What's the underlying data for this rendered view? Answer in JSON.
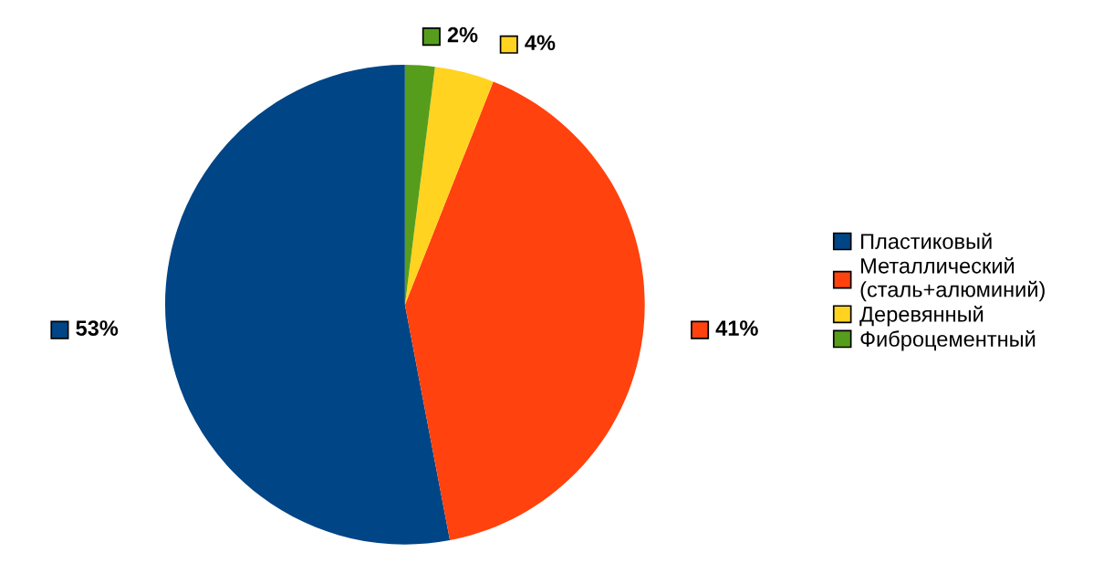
{
  "chart_data": {
    "type": "pie",
    "categories": [
      "Пластиковый",
      "Металлический\n(сталь+алюминий)",
      "Деревянный",
      "Фиброцементный"
    ],
    "values": [
      53,
      41,
      4,
      2
    ],
    "value_labels": [
      "53%",
      "41%",
      "4%",
      "2%"
    ],
    "colors": [
      "#004586",
      "#ff420e",
      "#ffd320",
      "#579d1c"
    ],
    "legend": "right"
  }
}
